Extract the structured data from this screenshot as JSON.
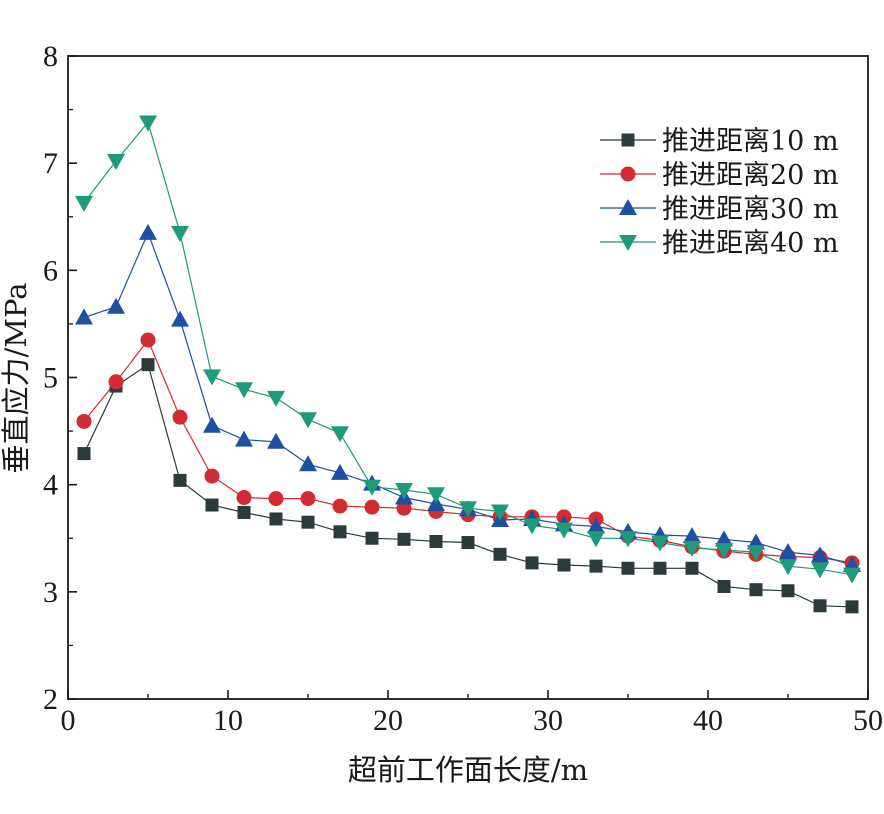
{
  "chart_data": {
    "type": "line",
    "title": "",
    "xlabel": "超前工作面长度/m",
    "ylabel": "垂直应力/MPa",
    "xlim": [
      0,
      50
    ],
    "ylim": [
      2,
      8
    ],
    "xticks": [
      0,
      10,
      20,
      30,
      40,
      50
    ],
    "yticks": [
      2,
      3,
      4,
      5,
      6,
      7,
      8
    ],
    "grid": false,
    "legend_position": "top-right",
    "x": [
      1,
      3,
      5,
      7,
      9,
      11,
      13,
      15,
      17,
      19,
      21,
      23,
      25,
      27,
      29,
      31,
      33,
      35,
      37,
      39,
      41,
      43,
      45,
      47,
      49
    ],
    "series": [
      {
        "name": "推进距离10 m",
        "color": "#2b3b3b",
        "marker": "square",
        "values": [
          4.29,
          4.92,
          5.12,
          4.04,
          3.81,
          3.74,
          3.68,
          3.65,
          3.56,
          3.5,
          3.49,
          3.47,
          3.46,
          3.35,
          3.27,
          3.25,
          3.24,
          3.22,
          3.22,
          3.22,
          3.05,
          3.02,
          3.01,
          2.87,
          2.86
        ]
      },
      {
        "name": "推进距离20 m",
        "color": "#d42a32",
        "marker": "circle",
        "values": [
          4.59,
          4.96,
          5.35,
          4.63,
          4.08,
          3.88,
          3.87,
          3.87,
          3.8,
          3.79,
          3.78,
          3.75,
          3.72,
          3.7,
          3.7,
          3.7,
          3.68,
          3.52,
          3.48,
          3.42,
          3.38,
          3.35,
          3.33,
          3.32,
          3.27
        ]
      },
      {
        "name": "推进距离30 m",
        "color": "#1f4fa0",
        "marker": "triangle-up",
        "values": [
          5.56,
          5.66,
          6.35,
          5.54,
          4.55,
          4.42,
          4.4,
          4.19,
          4.11,
          4.01,
          3.88,
          3.82,
          3.77,
          3.67,
          3.68,
          3.63,
          3.61,
          3.56,
          3.53,
          3.52,
          3.49,
          3.46,
          3.37,
          3.34,
          3.25
        ]
      },
      {
        "name": "推进距离40 m",
        "color": "#1f9a7a",
        "marker": "triangle-down",
        "values": [
          6.63,
          7.02,
          7.38,
          6.35,
          5.01,
          4.89,
          4.81,
          4.61,
          4.48,
          3.98,
          3.95,
          3.91,
          3.78,
          3.75,
          3.62,
          3.58,
          3.5,
          3.5,
          3.46,
          3.41,
          3.39,
          3.37,
          3.24,
          3.21,
          3.16
        ]
      }
    ]
  }
}
